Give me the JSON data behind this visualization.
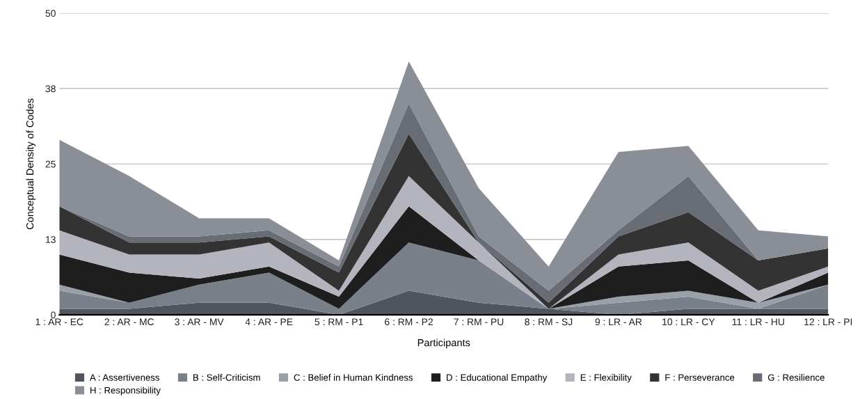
{
  "chart_data": {
    "type": "area",
    "stacked": true,
    "xlabel": "Participants",
    "ylabel": "Conceptual Density of Codes",
    "categories": [
      "1 : AR - EC",
      "2 : AR - MC",
      "3 : AR - MV",
      "4 : AR - PE",
      "5 : RM - P1",
      "6 : RM - P2",
      "7 : RM - PU",
      "8 : RM - SJ",
      "9 : LR - AR",
      "10 : LR - CY",
      "11 : LR - HU",
      "12 : LR - PI"
    ],
    "series": [
      {
        "name": "A : Assertiveness",
        "color": "#50545c",
        "values": [
          1,
          1,
          2,
          2,
          0,
          4,
          2,
          1,
          0,
          1,
          1,
          1
        ]
      },
      {
        "name": "B : Self-Criticism",
        "color": "#7a8089",
        "values": [
          3,
          1,
          3,
          5,
          1,
          8,
          7,
          0,
          2,
          2,
          0,
          4
        ]
      },
      {
        "name": "C : Belief in Human Kindness",
        "color": "#9aa0aa",
        "values": [
          1,
          0,
          0,
          0,
          0,
          0,
          0,
          0,
          1,
          1,
          1,
          0
        ]
      },
      {
        "name": "D : Educational Empathy",
        "color": "#1e1e1e",
        "values": [
          5,
          5,
          1,
          1,
          2,
          6,
          0,
          0,
          5,
          5,
          0,
          2
        ]
      },
      {
        "name": "E : Flexibility",
        "color": "#b4b4be",
        "values": [
          4,
          3,
          4,
          4,
          1,
          5,
          3,
          0,
          2,
          3,
          2,
          1
        ]
      },
      {
        "name": "F : Perseverance",
        "color": "#333333",
        "values": [
          4,
          2,
          2,
          1,
          3,
          7,
          0,
          1,
          3,
          5,
          5,
          3
        ]
      },
      {
        "name": "G : Resilience",
        "color": "#686c75",
        "values": [
          0,
          1,
          1,
          1,
          1,
          5,
          1,
          2,
          1,
          6,
          0,
          0
        ]
      },
      {
        "name": "H : Responsibility",
        "color": "#8a8e96",
        "values": [
          11,
          10,
          3,
          2,
          1,
          7,
          8,
          4,
          13,
          5,
          5,
          2
        ]
      }
    ],
    "ylim": [
      0,
      50
    ],
    "yticks": [
      0,
      {
        "value": 12.5,
        "label": "13"
      },
      25,
      {
        "value": 37.5,
        "label": "38"
      },
      50
    ],
    "grid": "y",
    "legend": "bottom"
  }
}
